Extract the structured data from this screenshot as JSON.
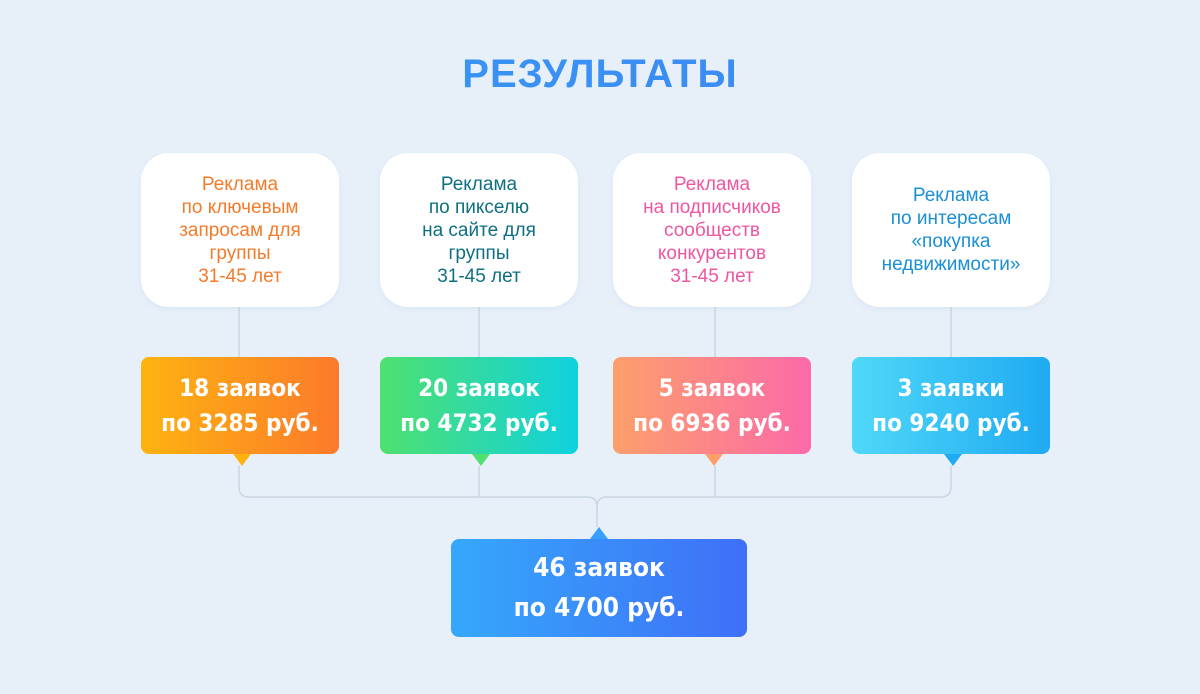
{
  "title": "РЕЗУЛЬТАТЫ",
  "sources": [
    {
      "lines": [
        "Реклама",
        "по ключевым",
        "запросам для",
        "группы",
        "31-45 лет"
      ],
      "color": "#f47b2a"
    },
    {
      "lines": [
        "Реклама",
        "по пикселю",
        "на сайте для",
        "группы",
        "31-45 лет"
      ],
      "color": "#0e6f82"
    },
    {
      "lines": [
        "Реклама",
        "на подписчиков",
        "сообществ",
        "конкурентов",
        "31-45 лет"
      ],
      "color": "#f0559f"
    },
    {
      "lines": [
        "Реклама",
        "по интересам",
        "«покупка",
        "недвижимости»"
      ],
      "color": "#1a8fd6"
    }
  ],
  "results": [
    {
      "line1": "18 заявок",
      "line2": "по 3285 руб.",
      "from": "#fdb30f",
      "to": "#fd7a2c"
    },
    {
      "line1": "20 заявок",
      "line2": "по 4732 руб.",
      "from": "#4fe06f",
      "to": "#0fd2df"
    },
    {
      "line1": "5 заявок",
      "line2": "по 6936 руб.",
      "from": "#fd9f6b",
      "to": "#fc6aa8"
    },
    {
      "line1": "3 заявки",
      "line2": "по 9240 руб.",
      "from": "#4fd8f8",
      "to": "#1faaf2"
    }
  ],
  "total": {
    "line1": "46 заявок",
    "line2": "по 4700 руб."
  }
}
